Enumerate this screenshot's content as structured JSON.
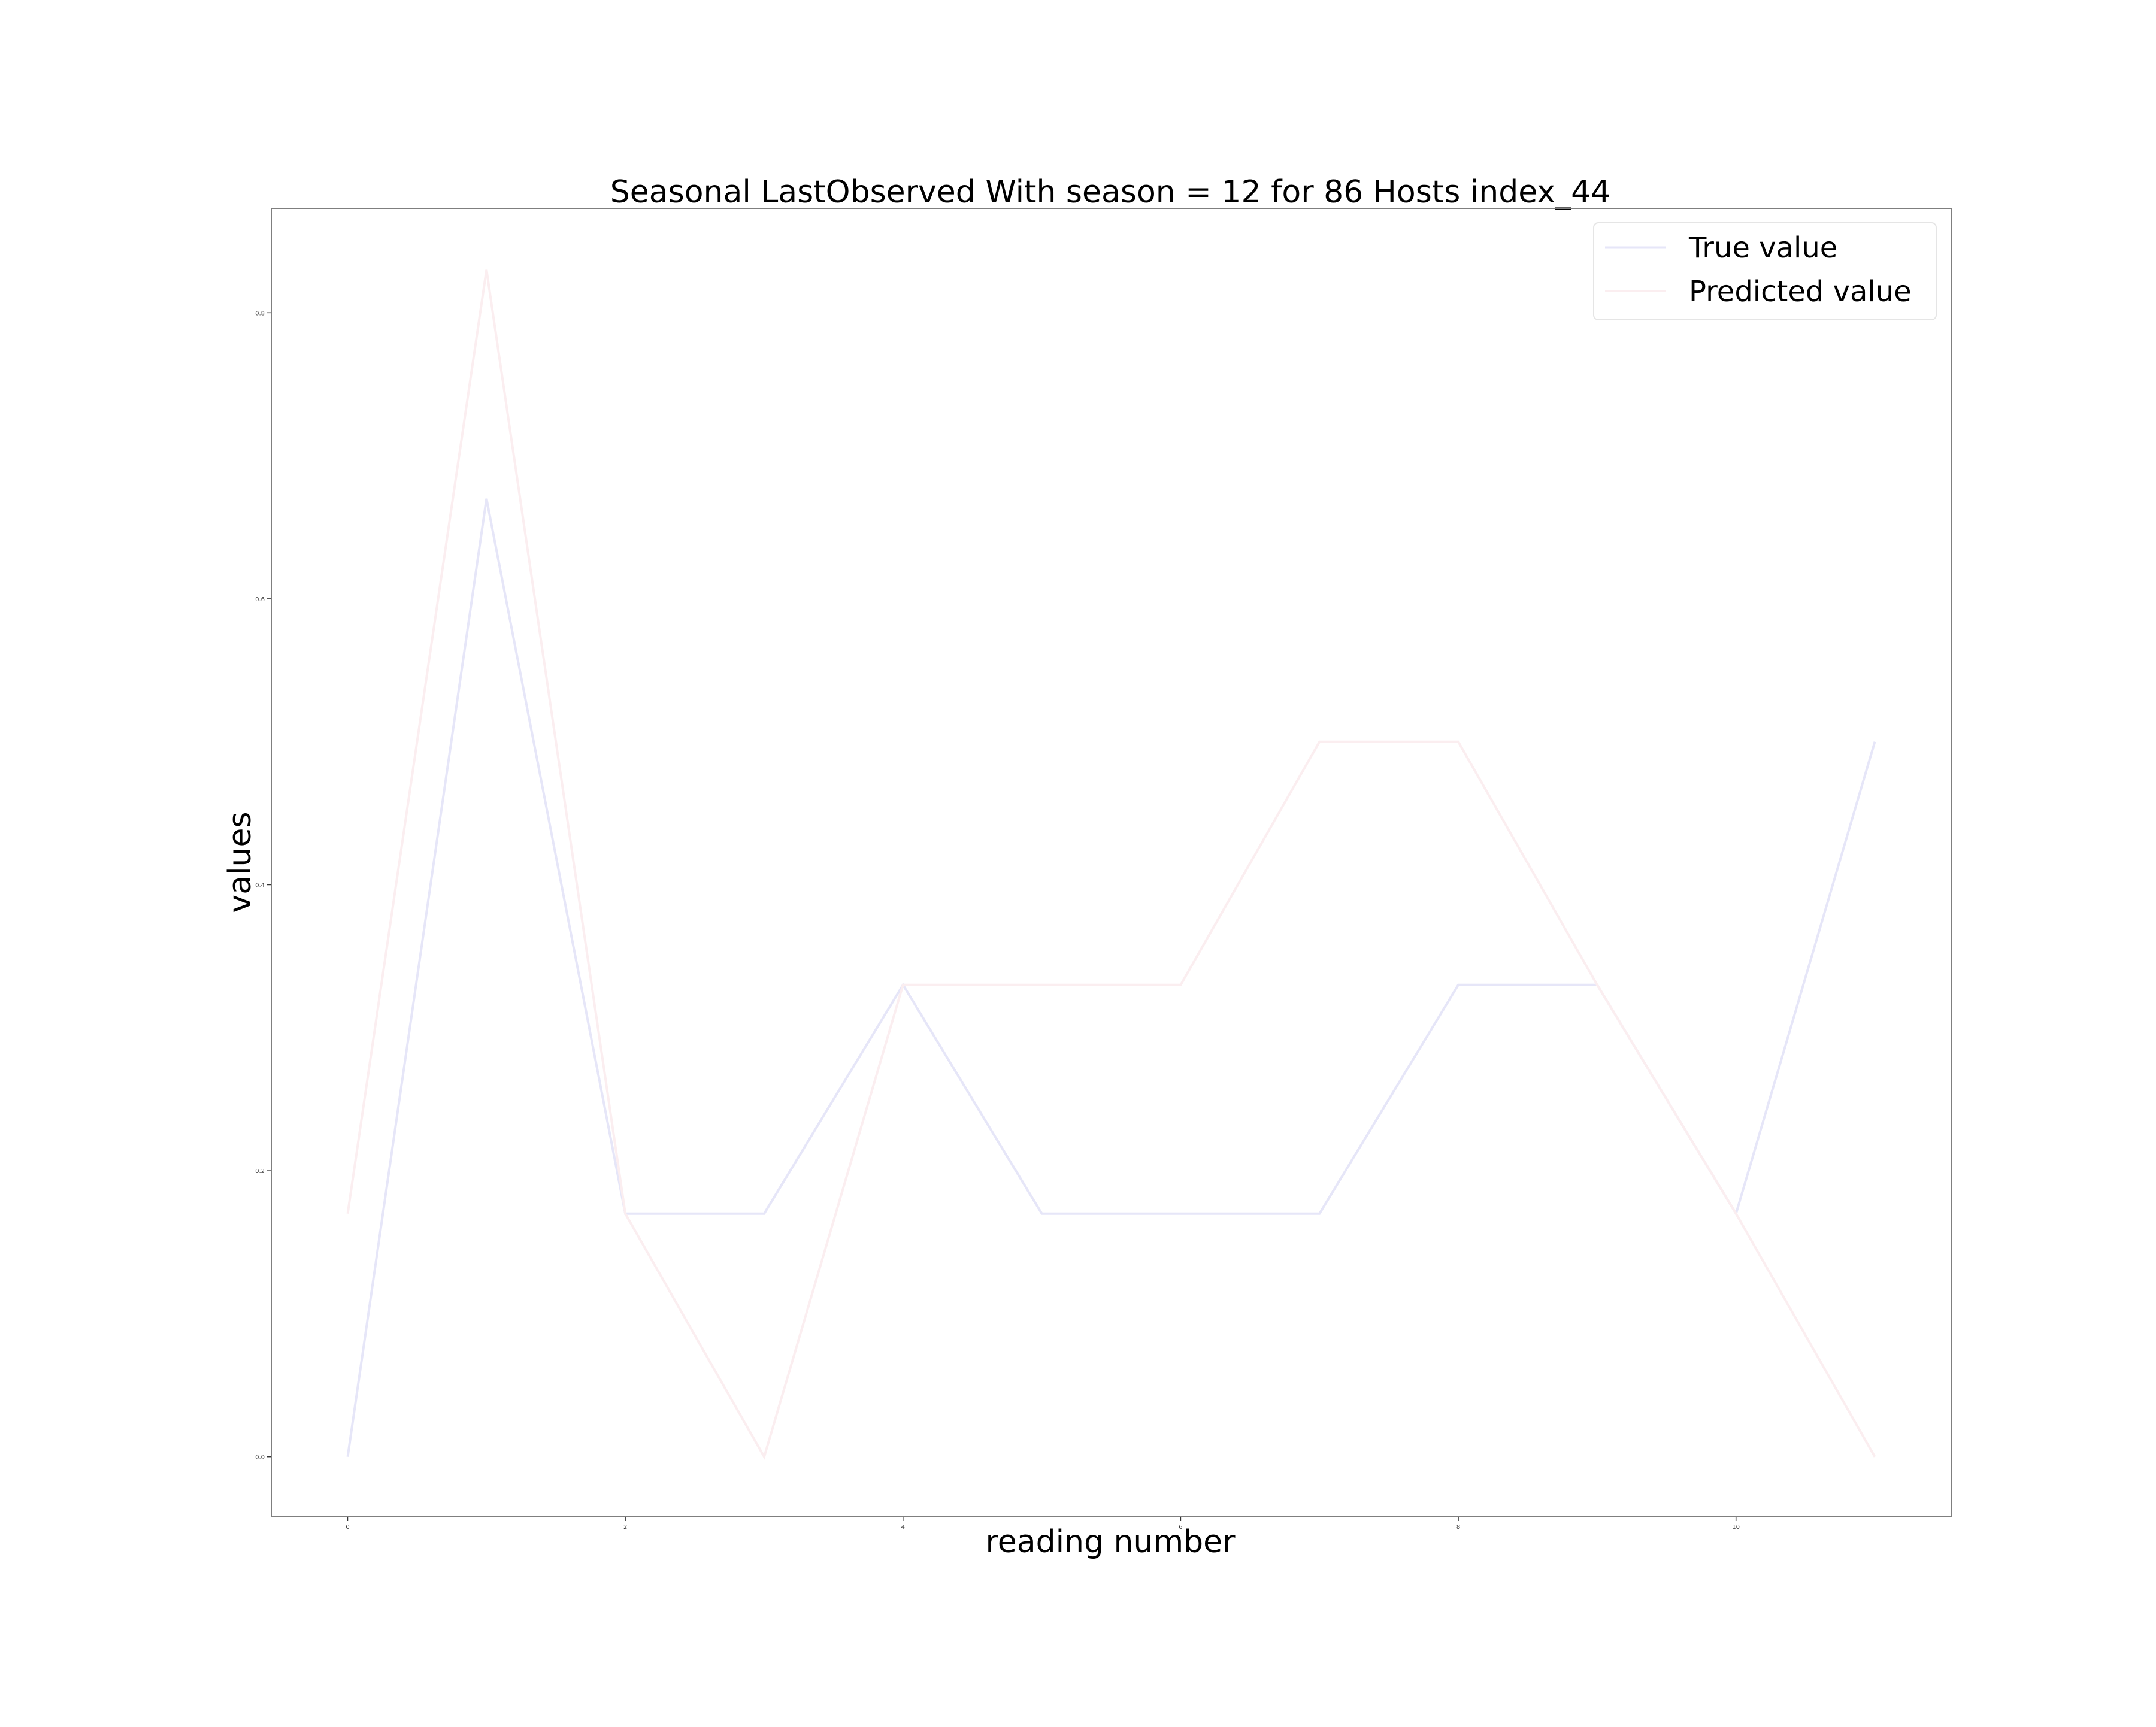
{
  "chart_data": {
    "type": "line",
    "title": "Seasonal LastObserved With season = 12 for 86 Hosts index_44",
    "xlabel": "reading number",
    "ylabel": "values",
    "x": [
      0,
      1,
      2,
      3,
      4,
      5,
      6,
      7,
      8,
      9,
      10,
      11
    ],
    "xlim": [
      -0.55,
      11.55
    ],
    "ylim": [
      -0.042,
      0.873
    ],
    "x_ticks": [
      0,
      2,
      4,
      6,
      8,
      10
    ],
    "x_tick_labels": [
      "0",
      "2",
      "4",
      "6",
      "8",
      "10"
    ],
    "y_ticks": [
      0.0,
      0.2,
      0.4,
      0.6,
      0.8
    ],
    "y_tick_labels": [
      "0.0",
      "0.2",
      "0.4",
      "0.6",
      "0.8"
    ],
    "grid": false,
    "legend_position": "top-right",
    "series": [
      {
        "name": "True value",
        "color": "#e6e6f8",
        "values": [
          0.0,
          0.67,
          0.17,
          0.17,
          0.33,
          0.17,
          0.17,
          0.17,
          0.33,
          0.33,
          0.17,
          0.5
        ]
      },
      {
        "name": "Predicted value",
        "color": "#fbeef0",
        "values": [
          0.17,
          0.83,
          0.17,
          0.0,
          0.33,
          0.33,
          0.33,
          0.5,
          0.5,
          0.33,
          0.17,
          0.0
        ]
      }
    ]
  }
}
